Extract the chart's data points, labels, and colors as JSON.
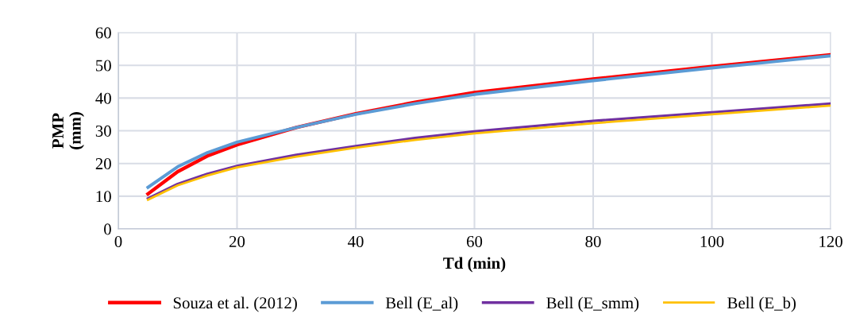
{
  "chart_data": {
    "type": "line",
    "xlabel": "Td (min)",
    "ylabel": "PMP\n(mm)",
    "x": [
      5,
      10,
      15,
      20,
      30,
      40,
      50,
      60,
      80,
      100,
      120
    ],
    "series": [
      {
        "name": "Souza et al. (2012)",
        "color": "#ff0000",
        "values": [
          10.7,
          17.5,
          22.3,
          25.7,
          31,
          35.2,
          38.7,
          41.7,
          45.8,
          49.6,
          53.2
        ]
      },
      {
        "name": "Bell (E_al)",
        "color": "#5b9bd5",
        "values": [
          12.7,
          19,
          23.3,
          26.5,
          31,
          35,
          38.3,
          41.1,
          45.3,
          49.2,
          52.9
        ]
      },
      {
        "name": "Bell (E_smm)",
        "color": "#7030a0",
        "values": [
          9.3,
          13.7,
          16.8,
          19.2,
          22.6,
          25.3,
          27.8,
          29.8,
          33,
          35.6,
          38.3
        ]
      },
      {
        "name": "Bell (E_b)",
        "color": "#ffc000",
        "values": [
          8.9,
          13.3,
          16.3,
          18.8,
          22.1,
          24.8,
          27.2,
          29.2,
          32.3,
          35,
          37.7
        ]
      }
    ],
    "xlim": [
      0,
      120
    ],
    "xticks": [
      0,
      20,
      40,
      60,
      80,
      100,
      120
    ],
    "ylim": [
      0,
      60
    ],
    "yticks": [
      0,
      10,
      20,
      30,
      40,
      50,
      60
    ],
    "grid": true,
    "legend": "bottom",
    "marker": "none",
    "line_style": "solid"
  }
}
